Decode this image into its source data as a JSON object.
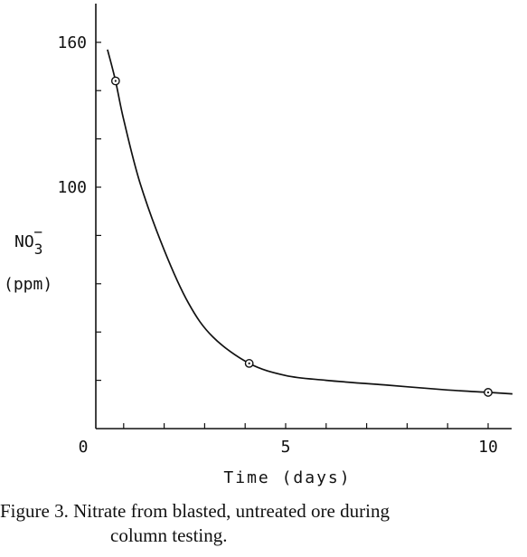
{
  "chart_data": {
    "type": "line",
    "ylabel_main": "NO",
    "ylabel_sub": "3",
    "ylabel_sup": "−",
    "ylabel_unit": "(ppm)",
    "xlabel": "Time (days)",
    "x_ticks": [
      0,
      5,
      10
    ],
    "y_ticks": [
      100,
      160
    ],
    "x_range": [
      0,
      10.5
    ],
    "y_range": [
      0,
      160
    ],
    "points": [
      {
        "x": 0.8,
        "y": 144
      },
      {
        "x": 4.1,
        "y": 27
      },
      {
        "x": 10.0,
        "y": 15
      }
    ],
    "curve": [
      {
        "x": 0.6,
        "y": 157
      },
      {
        "x": 0.8,
        "y": 144
      },
      {
        "x": 1.0,
        "y": 128
      },
      {
        "x": 1.4,
        "y": 102
      },
      {
        "x": 2.0,
        "y": 74
      },
      {
        "x": 2.6,
        "y": 52
      },
      {
        "x": 3.2,
        "y": 38
      },
      {
        "x": 4.1,
        "y": 27
      },
      {
        "x": 5.0,
        "y": 22
      },
      {
        "x": 6.0,
        "y": 20
      },
      {
        "x": 7.5,
        "y": 18
      },
      {
        "x": 9.0,
        "y": 16
      },
      {
        "x": 10.0,
        "y": 15
      },
      {
        "x": 10.6,
        "y": 14.4
      }
    ],
    "grid": false,
    "legend": "none"
  },
  "caption": {
    "line1": "Figure 3.  Nitrate from blasted, untreated ore during",
    "line2": "column testing."
  }
}
